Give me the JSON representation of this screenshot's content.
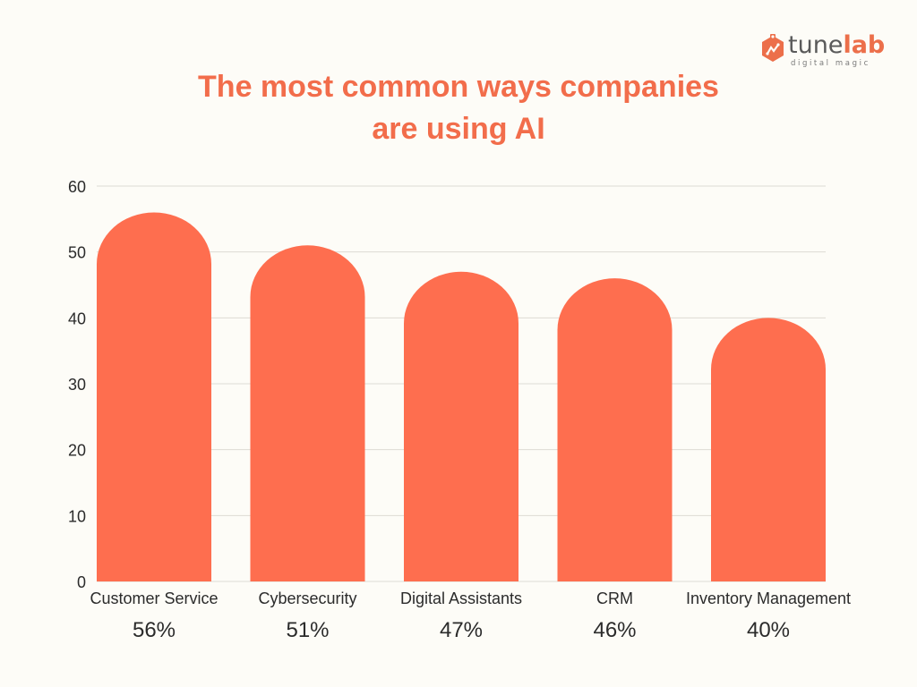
{
  "logo": {
    "word_main": "tune",
    "word_accent": "lab",
    "tagline": "digital magic",
    "icon": "hexagon-gear-icon"
  },
  "chart_data": {
    "type": "bar",
    "title_lines": [
      "The most common ways companies",
      "are using AI"
    ],
    "categories": [
      "Customer Service",
      "Cybersecurity",
      "Digital Assistants",
      "CRM",
      "Inventory Management"
    ],
    "values": [
      56,
      51,
      47,
      46,
      40
    ],
    "value_labels": [
      "56%",
      "51%",
      "47%",
      "46%",
      "40%"
    ],
    "ylim": [
      0,
      60
    ],
    "yticks": [
      0,
      10,
      20,
      30,
      40,
      50,
      60
    ],
    "grid": true,
    "legend": "none",
    "bar_color": "#fe6e4f",
    "grid_color": "#dddbd4",
    "axis_text_color": "#2b2b2b",
    "title_color": "#f26d4b"
  }
}
